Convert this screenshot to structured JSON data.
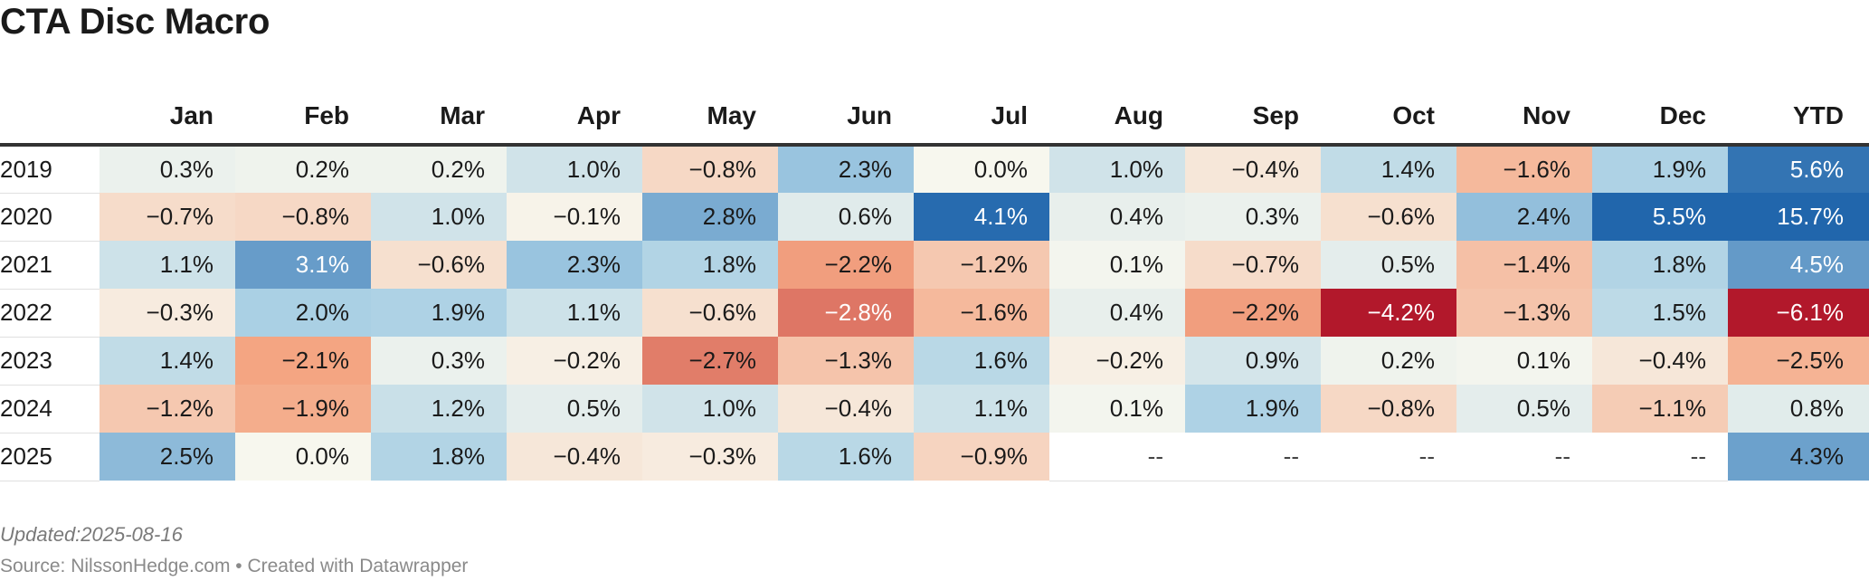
{
  "chart_data": {
    "type": "table",
    "title": "CTA Disc Macro",
    "columns": [
      "",
      "Jan",
      "Feb",
      "Mar",
      "Apr",
      "May",
      "Jun",
      "Jul",
      "Aug",
      "Sep",
      "Oct",
      "Nov",
      "Dec",
      "YTD"
    ],
    "rows": [
      {
        "year": "2019",
        "values": [
          0.3,
          0.2,
          0.2,
          1.0,
          -0.8,
          2.3,
          0.0,
          1.0,
          -0.4,
          1.4,
          -1.6,
          1.9
        ],
        "ytd": 5.6
      },
      {
        "year": "2020",
        "values": [
          -0.7,
          -0.8,
          1.0,
          -0.1,
          2.8,
          0.6,
          4.1,
          0.4,
          0.3,
          -0.6,
          2.4,
          5.5
        ],
        "ytd": 15.7
      },
      {
        "year": "2021",
        "values": [
          1.1,
          3.1,
          -0.6,
          2.3,
          1.8,
          -2.2,
          -1.2,
          0.1,
          -0.7,
          0.5,
          -1.4,
          1.8
        ],
        "ytd": 4.5
      },
      {
        "year": "2022",
        "values": [
          -0.3,
          2.0,
          1.9,
          1.1,
          -0.6,
          -2.8,
          -1.6,
          0.4,
          -2.2,
          -4.2,
          -1.3,
          1.5
        ],
        "ytd": -6.1
      },
      {
        "year": "2023",
        "values": [
          1.4,
          -2.1,
          0.3,
          -0.2,
          -2.7,
          -1.3,
          1.6,
          -0.2,
          0.9,
          0.2,
          0.1,
          -0.4
        ],
        "ytd": -2.5
      },
      {
        "year": "2024",
        "values": [
          -1.2,
          -1.9,
          1.2,
          0.5,
          1.0,
          -0.4,
          1.1,
          0.1,
          1.9,
          -0.8,
          0.5,
          -1.1
        ],
        "ytd": 0.8
      },
      {
        "year": "2025",
        "values": [
          2.5,
          0.0,
          1.8,
          -0.4,
          -0.3,
          1.6,
          -0.9,
          null,
          null,
          null,
          null,
          null
        ],
        "ytd": 4.3
      }
    ],
    "missing_label": "--",
    "value_suffix": "%",
    "color_scale": {
      "negative_max": "#b2182b",
      "neutral": "#f7f7ee",
      "positive_max": "#2166ac"
    }
  },
  "footer": {
    "updated": "Updated:2025-08-16",
    "source": "Source: NilssonHedge.com • Created with Datawrapper"
  }
}
